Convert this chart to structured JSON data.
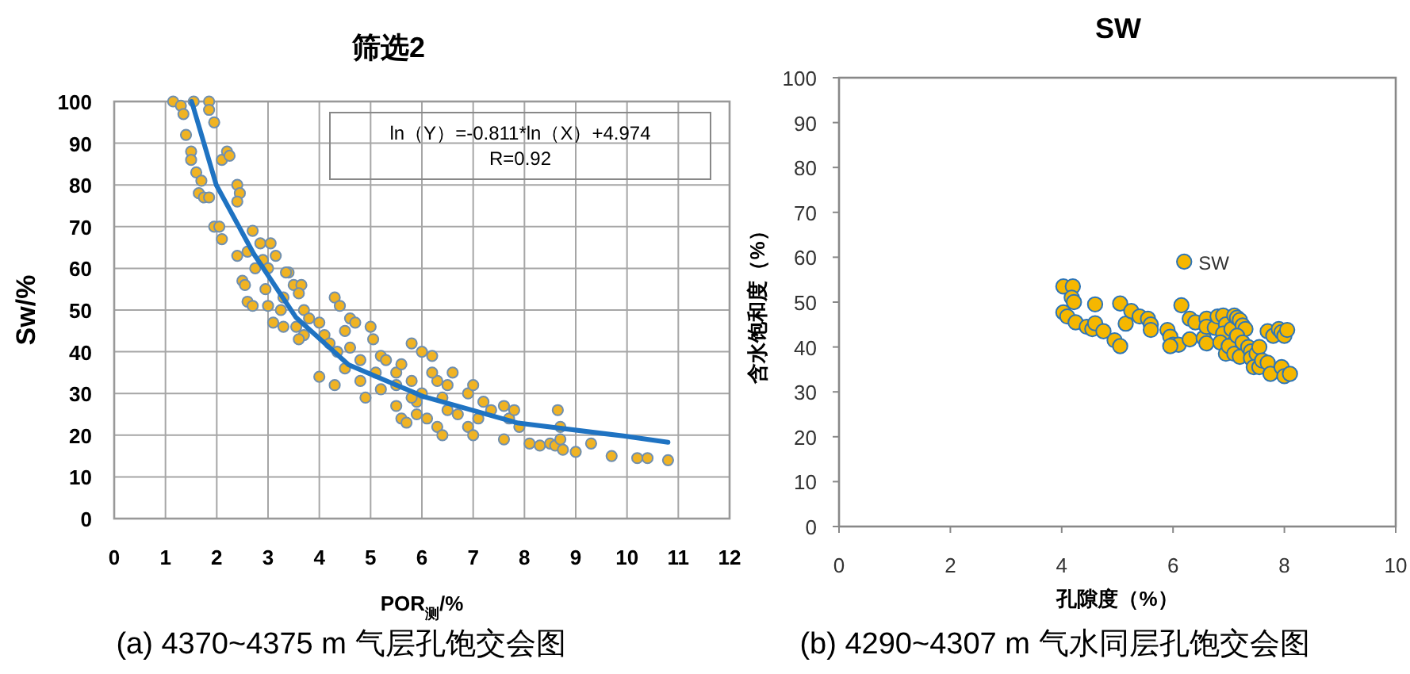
{
  "chart_data": [
    {
      "type": "scatter",
      "title": "筛选2",
      "xlabel": "POR$_{测}$/%",
      "ylabel": "Sw/%",
      "annotations": [
        "ln（Y）=-0.811*ln（X）+4.974",
        "R=0.92",
        "(a) 4370~4375 m 气层孔饱交会图"
      ],
      "xlim": [
        0,
        12
      ],
      "ylim": [
        0,
        100
      ],
      "xticks": [
        0,
        1,
        2,
        3,
        4,
        5,
        6,
        7,
        8,
        9,
        10,
        11,
        12
      ],
      "yticks": [
        0,
        10,
        20,
        30,
        40,
        50,
        60,
        70,
        80,
        90,
        100
      ],
      "grid": true,
      "legend": false,
      "marker": "circle",
      "series": [
        {
          "type": "scatter",
          "color": "#f0b323",
          "x": [
            1.15,
            1.3,
            1.35,
            1.55,
            1.85,
            1.85,
            1.95,
            1.4,
            1.5,
            1.5,
            1.6,
            1.7,
            1.65,
            1.75,
            1.85,
            2.1,
            2.2,
            2.25,
            2.4,
            2.45,
            2.4,
            1.95,
            2.05,
            2.1,
            2.4,
            2.7,
            2.6,
            2.85,
            3.05,
            3.15,
            2.9,
            2.75,
            3.0,
            2.5,
            2.55,
            3.4,
            3.35,
            2.6,
            2.7,
            2.95,
            3.0,
            3.25,
            3.5,
            3.65,
            3.6,
            3.3,
            3.7,
            3.1,
            3.3,
            3.55,
            3.8,
            4.0,
            4.3,
            4.4,
            4.6,
            4.7,
            4.5,
            4.1,
            4.2,
            3.7,
            3.6,
            4.35,
            4.0,
            4.3,
            4.5,
            4.8,
            5.0,
            5.05,
            5.2,
            5.1,
            5.2,
            5.5,
            5.5,
            5.8,
            6.0,
            6.2,
            5.6,
            5.7,
            5.9,
            6.1,
            6.3,
            6.5,
            6.6,
            6.5,
            6.9,
            7.0,
            6.9,
            7.0,
            7.2,
            7.35,
            7.6,
            7.7,
            7.6,
            7.8,
            7.9,
            8.1,
            8.3,
            8.5,
            8.6,
            8.65,
            8.7,
            8.7,
            8.75,
            9.0,
            9.3,
            9.7,
            10.2,
            10.4,
            10.8,
            5.5,
            5.8,
            6.0,
            6.3,
            5.3,
            4.8,
            4.9,
            5.9,
            6.4,
            6.7,
            4.6,
            5.6,
            6.2,
            7.1,
            6.4,
            5.8
          ],
          "values": [
            100,
            99,
            97,
            100,
            100,
            98,
            95,
            92,
            88,
            86,
            83,
            81,
            78,
            77,
            77,
            86,
            88,
            87,
            80,
            78,
            76,
            70,
            70,
            67,
            63,
            69,
            64,
            66,
            66,
            63,
            62,
            60,
            60,
            57,
            56,
            59,
            59,
            52,
            51,
            55,
            51,
            50,
            56,
            56,
            54,
            53,
            50,
            47,
            46,
            46,
            48,
            47,
            53,
            51,
            48,
            47,
            45,
            44,
            42,
            44,
            43,
            40,
            34,
            32,
            36,
            38,
            46,
            43,
            39,
            35,
            31,
            27,
            32,
            42,
            40,
            39,
            24,
            23,
            25,
            24,
            22,
            26,
            35,
            32,
            30,
            32,
            22,
            20,
            28,
            26,
            27,
            24,
            19,
            26,
            22,
            18,
            17.5,
            18,
            17.5,
            26,
            22,
            19,
            16.5,
            16,
            18,
            15,
            14.5,
            14.5,
            14,
            35,
            33,
            30,
            33,
            38,
            33,
            29,
            28,
            29,
            25,
            41,
            37,
            35,
            24,
            20,
            29
          ]
        },
        {
          "type": "line",
          "marker": "none",
          "color": "#1f73c2",
          "x": [
            1.51,
            1.99,
            2.72,
            3.54,
            4.57,
            6.02,
            7.88,
            9.93,
            10.8
          ],
          "values": [
            100,
            80,
            63.5,
            48.3,
            36.9,
            29.3,
            22.9,
            19.8,
            18.3
          ]
        }
      ]
    },
    {
      "type": "scatter",
      "title": "SW",
      "xlabel": "孔隙度（%）",
      "ylabel": "含水饱和度（%）",
      "annotations": [
        "(b) 4290~4307 m 气水同层孔饱交会图"
      ],
      "xlim": [
        0,
        10
      ],
      "ylim": [
        0,
        100
      ],
      "xticks": [
        0,
        2,
        4,
        6,
        8,
        10
      ],
      "yticks": [
        0,
        10,
        20,
        30,
        40,
        50,
        60,
        70,
        80,
        90,
        100
      ],
      "grid": false,
      "legend": "right",
      "marker": "circle",
      "series": [
        {
          "name": "SW",
          "type": "scatter",
          "color": "#f5b700",
          "x": [
            4.03,
            4.2,
            4.18,
            4.22,
            4.03,
            4.1,
            4.25,
            4.45,
            4.55,
            4.6,
            4.6,
            4.75,
            4.95,
            5.05,
            5.05,
            5.15,
            5.25,
            5.4,
            5.55,
            5.6,
            5.6,
            5.9,
            5.95,
            6.0,
            6.1,
            5.95,
            6.15,
            6.3,
            6.4,
            6.3,
            6.55,
            6.6,
            6.6,
            6.6,
            6.75,
            6.8,
            6.9,
            6.95,
            6.9,
            6.85,
            6.95,
            7.0,
            7.05,
            7.1,
            7.15,
            7.2,
            7.25,
            7.3,
            7.1,
            7.2,
            7.15,
            7.25,
            7.35,
            7.4,
            7.4,
            7.5,
            7.55,
            7.45,
            7.55,
            7.6,
            7.7,
            7.75,
            7.7,
            7.8,
            7.9,
            7.95,
            8.0,
            8.05,
            7.95,
            8.0,
            8.1
          ],
          "values": [
            53.5,
            53.5,
            51,
            50,
            47.7,
            46.8,
            45.5,
            44.5,
            44,
            45.3,
            49.5,
            43.5,
            41.5,
            40.2,
            49.7,
            45.2,
            48,
            46.8,
            46.3,
            45,
            43.8,
            43.8,
            42.3,
            40.5,
            40.5,
            40.2,
            49.3,
            46.3,
            45.5,
            41.7,
            42,
            40.8,
            46.3,
            44.5,
            44.3,
            46.8,
            47,
            45,
            43,
            41,
            38.5,
            40.2,
            44,
            47,
            46.5,
            46,
            44.8,
            44,
            38.5,
            37.8,
            42.5,
            41,
            40,
            39,
            37.5,
            38.5,
            40,
            35.5,
            35.5,
            37,
            36.5,
            34,
            43.5,
            42.5,
            44,
            43.3,
            42.5,
            43.8,
            35.5,
            33.5,
            34
          ]
        }
      ]
    }
  ]
}
